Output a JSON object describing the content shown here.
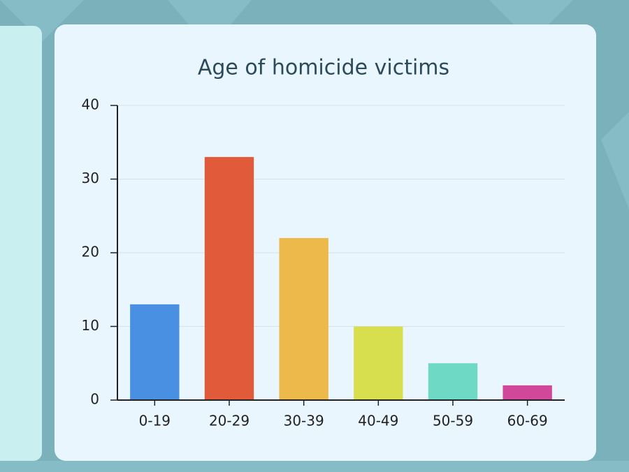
{
  "chart_data": {
    "type": "bar",
    "title": "Age of homicide victims",
    "categories": [
      "0-19",
      "20-29",
      "30-39",
      "40-49",
      "50-59",
      "60-69"
    ],
    "values": [
      13,
      33,
      22,
      10,
      5,
      2
    ],
    "colors": [
      "#4a90e2",
      "#e15b3a",
      "#edb94b",
      "#d8df4f",
      "#6ed9c5",
      "#d1479a"
    ],
    "ylim": [
      0,
      40
    ],
    "yticks": [
      0,
      10,
      20,
      30,
      40
    ],
    "grid": true
  }
}
